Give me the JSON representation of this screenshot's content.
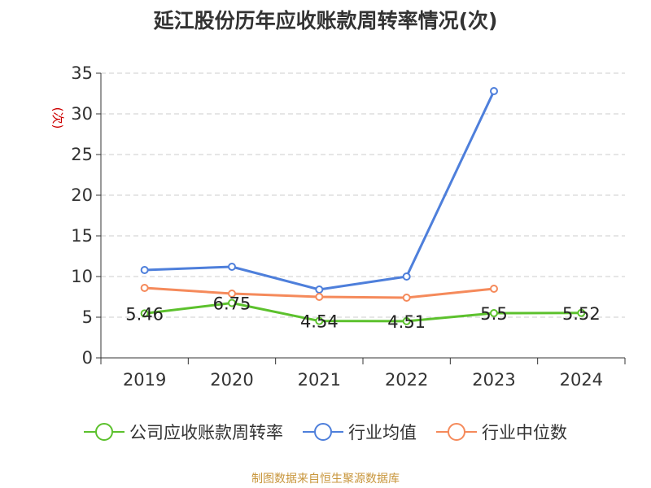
{
  "chart_data": {
    "type": "line",
    "title": "延江股份历年应收账款周转率情况(次)",
    "ylabel": "(次)",
    "xlabel": "",
    "categories": [
      "2019",
      "2020",
      "2021",
      "2022",
      "2023",
      "2024"
    ],
    "ylim": [
      0,
      35
    ],
    "yticks": [
      0,
      5,
      10,
      15,
      20,
      25,
      30,
      35
    ],
    "grid": true,
    "legend_position": "bottom",
    "series": [
      {
        "name": "公司应收账款周转率",
        "color": "#5cc12d",
        "values": [
          5.46,
          6.75,
          4.54,
          4.51,
          5.5,
          5.52
        ],
        "labels": [
          "5.46",
          "6.75",
          "4.54",
          "4.51",
          "5.5",
          "5.52"
        ]
      },
      {
        "name": "行业均值",
        "color": "#4e7fdb",
        "values": [
          10.8,
          11.2,
          8.4,
          10.0,
          32.8,
          null
        ]
      },
      {
        "name": "行业中位数",
        "color": "#f58a5b",
        "values": [
          8.6,
          7.9,
          7.5,
          7.4,
          8.5,
          null
        ]
      }
    ],
    "source": "制图数据来自恒生聚源数据库",
    "colors": {
      "ylabel": "#cc0000",
      "source": "#c8963c",
      "grid": "#cccccc",
      "axis": "#333333"
    }
  }
}
